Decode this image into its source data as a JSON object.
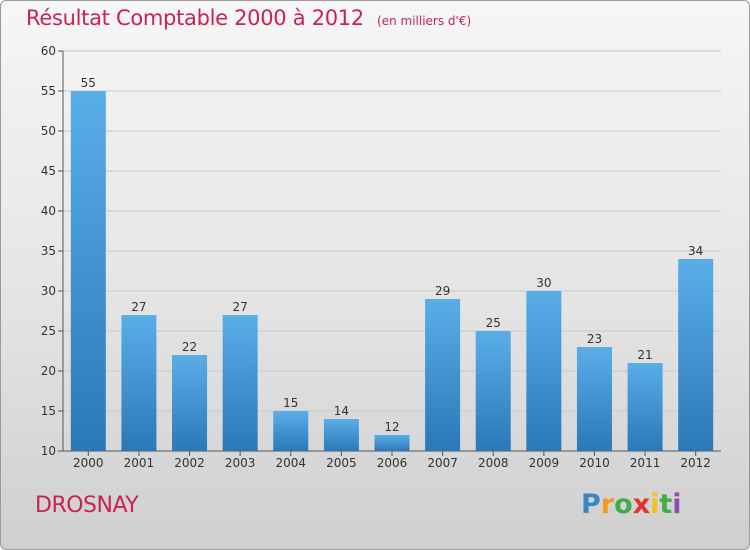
{
  "chart_data": {
    "type": "bar",
    "title": "Résultat Comptable 2000 à 2012",
    "subtitle": "(en milliers d'€)",
    "categories": [
      "2000",
      "2001",
      "2002",
      "2003",
      "2004",
      "2005",
      "2006",
      "2007",
      "2008",
      "2009",
      "2010",
      "2011",
      "2012"
    ],
    "values": [
      55,
      27,
      22,
      27,
      15,
      14,
      12,
      29,
      25,
      30,
      23,
      21,
      34
    ],
    "ylim": [
      10,
      60
    ],
    "yticks": [
      10,
      15,
      20,
      25,
      30,
      35,
      40,
      45,
      50,
      55,
      60
    ],
    "grid": true,
    "bar_color": "#3a8fd4",
    "title_color": "#c8244f"
  },
  "footer": {
    "commune": "DROSNAY",
    "logo_letters": [
      "P",
      "r",
      "o",
      "x",
      "i",
      "t",
      "i"
    ],
    "logo_colors": [
      "#3a86c8",
      "#f29a1d",
      "#3fae49",
      "#e2332b",
      "#f0c419",
      "#3fae49",
      "#8a4fb8"
    ]
  }
}
